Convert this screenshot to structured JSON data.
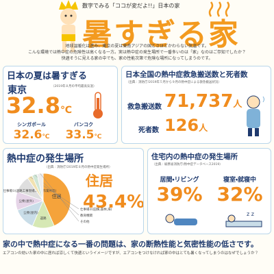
{
  "header": {
    "kicker": "数字でみる「ココが変だよ!!」日本の家",
    "title": "暑すぎる家",
    "intro": [
      "地球温暖化は進み、東京の夏は東南アジアの国とさほどかわらない気温です。",
      "こんな環境では熱中症の危険性は高くなる一方。実は熱中症の発生場所で一番多いのは「家」なのはご存知でしたか？",
      "快適そうに見える家の中でも、家の性能次第で危険な場所になってしまうのです。"
    ]
  },
  "summer": {
    "title": "日本の夏は暑すぎる",
    "city": "東京",
    "note": "（2019年８月の平均最高気温）",
    "temp": "32.8",
    "unit": "℃",
    "others": [
      {
        "city": "シンガポール",
        "temp": "32.6",
        "unit": "℃"
      },
      {
        "city": "バンコク",
        "temp": "33.5",
        "unit": "℃"
      }
    ]
  },
  "emergency": {
    "title": "日本全国の熱中症救急搬送数と死者数",
    "source": "（出典：消防庁/2019年５月から９月の熱中症による救急搬送状況）",
    "items": [
      {
        "label": "救急搬送数",
        "value": "71,737",
        "unit": "人"
      },
      {
        "label": "死者数",
        "value": "126",
        "unit": "人"
      }
    ]
  },
  "chart_data": {
    "type": "pie",
    "title": "熱中症の発生場所",
    "source": "（出典：消防庁/2019年８月の熱中症発生場所）",
    "categories": [
      "住居",
      "道路",
      "公衆(屋内)",
      "公衆(屋外)",
      "仕事場①(道路工事現場,工場,作業所等)",
      "仕事場②(田畑,森林,海)",
      "教育機関",
      "その他"
    ],
    "values": [
      43.4,
      13,
      13,
      11,
      10,
      3,
      3,
      3.6
    ],
    "value_labels": [
      "43.4%",
      null,
      null,
      null,
      null,
      null,
      null,
      null
    ],
    "colors": [
      "#f5a33b",
      "#d6e8b4",
      "#c9dde8",
      "#e6d5e8",
      "#dedede",
      "#f1e2b0",
      "#cfe6d6",
      "#ececec"
    ]
  },
  "home": {
    "title": "住宅内の熱中症の発生場所",
    "source": "（出典：総務省消防庁/熱中症データベース2019）",
    "items": [
      {
        "label": "居間・リビング",
        "value": "39%"
      },
      {
        "label": "寝室・就寝中",
        "value": "32%"
      }
    ]
  },
  "footer": {
    "headline": "家の中で熱中症になる一番の問題は、家の断熱性能と気密性能の低さです。",
    "text": "エアコンの効いた家の中に居れば涼しくて快適というイメージですが、エアコンをつけなければ家の中はとても暑くなってしまうのはなぜでしょうか？"
  }
}
